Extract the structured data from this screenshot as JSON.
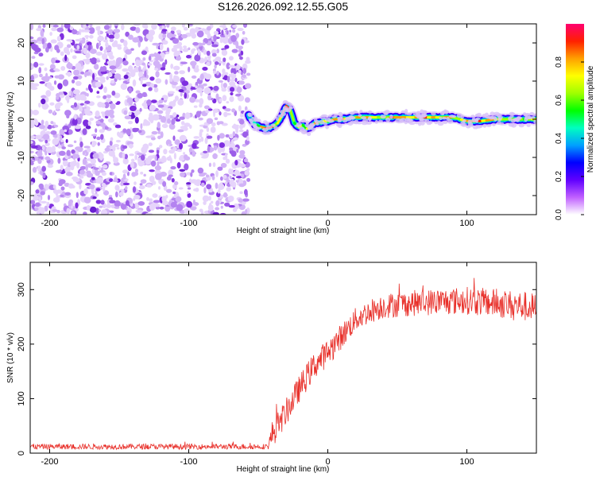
{
  "title": "S126.2026.092.12.55.G05",
  "chart_data": [
    {
      "type": "heatmap",
      "xlabel": "Height of straight line (km)",
      "ylabel": "Frequency (Hz)",
      "xlim": [
        -214,
        150
      ],
      "ylim": [
        -25,
        25
      ],
      "xticks": [
        -200,
        -100,
        0,
        100
      ],
      "yticks": [
        -20,
        -10,
        0,
        10,
        20
      ],
      "xtick_labels": [
        "-200",
        "-100",
        "0",
        "100"
      ],
      "ytick_labels": [
        "-20",
        "-10",
        "0",
        "10",
        "20"
      ],
      "noise_region_x": [
        -214,
        -57
      ],
      "trace": {
        "x": [
          -57,
          -52,
          -48,
          -44,
          -40,
          -36,
          -33,
          -30,
          -27,
          -24,
          -21,
          -18,
          -15,
          -12,
          -9,
          -6,
          -3,
          0,
          5,
          10,
          20,
          30,
          40,
          50,
          60,
          70,
          80,
          90,
          100,
          110,
          120,
          130,
          140,
          150
        ],
        "freq": [
          1,
          -1.5,
          -2,
          -2.5,
          -2,
          -1,
          1,
          3.5,
          2.5,
          -1,
          -2,
          -1.5,
          -2.5,
          -2,
          -1,
          -1,
          -0.5,
          -0.5,
          0,
          0,
          0.5,
          0.5,
          0.5,
          0.5,
          0.5,
          0.5,
          0.5,
          0.5,
          -0.5,
          -0.5,
          0,
          0,
          0,
          0
        ],
        "amplitude": [
          0.3,
          0.6,
          0.75,
          0.9,
          0.85,
          0.8,
          0.9,
          0.85,
          0.7,
          0.5,
          0.65,
          0.7,
          0.8,
          0.85,
          0.75,
          0.7,
          0.7,
          0.75,
          0.9,
          0.85,
          0.8,
          0.75,
          0.8,
          0.85,
          0.8,
          0.85,
          0.85,
          0.8,
          0.85,
          0.8,
          0.75,
          0.7,
          0.7,
          0.7
        ]
      },
      "colorbar": {
        "label": "Normalized spectral amplitude",
        "range": [
          0,
          1
        ],
        "ticks": [
          0.0,
          0.2,
          0.4,
          0.6,
          0.8
        ],
        "tick_labels": [
          "0.0",
          "0.2",
          "0.4",
          "0.6",
          "0.8"
        ],
        "colors": [
          "#ffffff",
          "#c060ff",
          "#6000ff",
          "#0000ff",
          "#00a0ff",
          "#00ffc0",
          "#00ff00",
          "#a0ff00",
          "#ffff00",
          "#ffa000",
          "#ff2000",
          "#ff0070"
        ]
      },
      "noise_color": "#8a2be2"
    },
    {
      "type": "line",
      "xlabel": "Height of straight line (km)",
      "ylabel": "SNR (10 * v/v)",
      "xlim": [
        -214,
        150
      ],
      "ylim": [
        0,
        350
      ],
      "xticks": [
        -200,
        -100,
        0,
        100
      ],
      "yticks": [
        0,
        100,
        200,
        300
      ],
      "xtick_labels": [
        "-200",
        "-100",
        "0",
        "100"
      ],
      "ytick_labels": [
        "0",
        "100",
        "200",
        "300"
      ],
      "color": "#e8302a",
      "envelope": {
        "x": [
          -214,
          -100,
          -60,
          -43,
          -40,
          -30,
          -20,
          -10,
          0,
          10,
          20,
          30,
          40,
          60,
          80,
          100,
          120,
          140,
          150
        ],
        "y": [
          12,
          12,
          12,
          12,
          35,
          75,
          120,
          160,
          185,
          215,
          245,
          260,
          270,
          275,
          278,
          280,
          275,
          270,
          265
        ]
      },
      "noise_amplitude": {
        "x": [
          -214,
          -43,
          -40,
          0,
          20,
          150
        ],
        "y": [
          5,
          5,
          25,
          25,
          22,
          28
        ]
      }
    }
  ]
}
